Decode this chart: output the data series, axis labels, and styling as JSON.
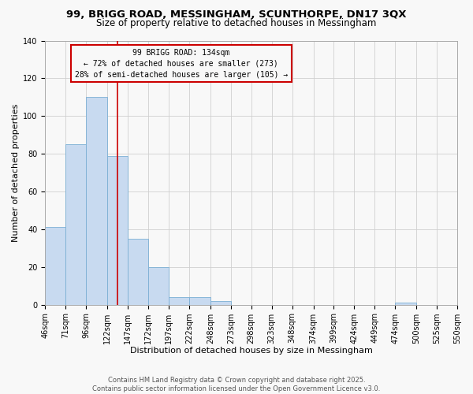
{
  "title": "99, BRIGG ROAD, MESSINGHAM, SCUNTHORPE, DN17 3QX",
  "subtitle": "Size of property relative to detached houses in Messingham",
  "xlabel": "Distribution of detached houses by size in Messingham",
  "ylabel": "Number of detached properties",
  "all_bar_values": [
    41,
    85,
    110,
    79,
    35,
    20,
    4,
    4,
    2,
    0,
    0,
    0,
    0,
    0,
    0,
    0,
    0,
    1,
    0,
    0
  ],
  "bar_labels": [
    "46sqm",
    "71sqm",
    "96sqm",
    "122sqm",
    "147sqm",
    "172sqm",
    "197sqm",
    "222sqm",
    "248sqm",
    "273sqm",
    "298sqm",
    "323sqm",
    "348sqm",
    "374sqm",
    "399sqm",
    "424sqm",
    "449sqm",
    "474sqm",
    "500sqm",
    "525sqm",
    "550sqm"
  ],
  "bar_color": "#c8daf0",
  "bar_edge_color": "#7bafd4",
  "grid_color": "#d0d0d0",
  "annotation_text": "99 BRIGG ROAD: 134sqm\n← 72% of detached houses are smaller (273)\n28% of semi-detached houses are larger (105) →",
  "annotation_box_edge": "#cc0000",
  "vline_x": 134,
  "vline_color": "#cc0000",
  "bin_edges": [
    46,
    71,
    96,
    122,
    147,
    172,
    197,
    222,
    248,
    273,
    298,
    323,
    348,
    374,
    399,
    424,
    449,
    474,
    500,
    525,
    550
  ],
  "ylim": [
    0,
    140
  ],
  "yticks": [
    0,
    20,
    40,
    60,
    80,
    100,
    120,
    140
  ],
  "footer_text": "Contains HM Land Registry data © Crown copyright and database right 2025.\nContains public sector information licensed under the Open Government Licence v3.0.",
  "background_color": "#f8f8f8",
  "title_fontsize": 9.5,
  "subtitle_fontsize": 8.5,
  "axis_label_fontsize": 8,
  "tick_fontsize": 7,
  "annotation_fontsize": 7,
  "footer_fontsize": 6
}
